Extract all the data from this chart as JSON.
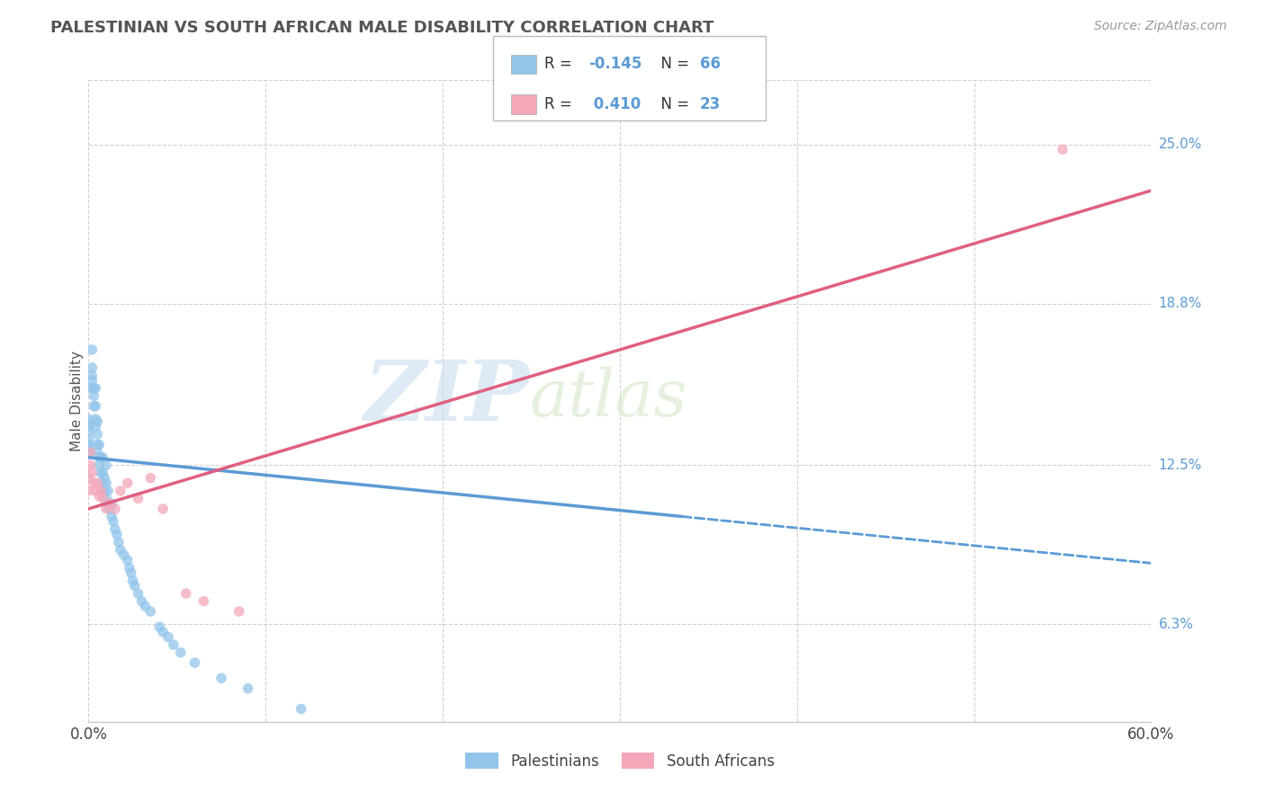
{
  "title": "PALESTINIAN VS SOUTH AFRICAN MALE DISABILITY CORRELATION CHART",
  "source": "Source: ZipAtlas.com",
  "ylabel": "Male Disability",
  "ytick_labels": [
    "25.0%",
    "18.8%",
    "12.5%",
    "6.3%"
  ],
  "ytick_values": [
    0.25,
    0.188,
    0.125,
    0.063
  ],
  "xlim": [
    0.0,
    0.6
  ],
  "ylim": [
    0.025,
    0.275
  ],
  "legend_label1": "Palestinians",
  "legend_label2": "South Africans",
  "r1": -0.145,
  "n1": 66,
  "r2": 0.41,
  "n2": 23,
  "color_blue": "#92C5EA",
  "color_pink": "#F4A7B9",
  "line_blue": "#5B9BD5",
  "line_pink": "#E06080",
  "watermark_zip": "ZIP",
  "watermark_atlas": "atlas",
  "background": "#FFFFFF",
  "grid_color": "#CCCCCC",
  "palestinians_x": [
    0.0,
    0.0,
    0.0,
    0.0,
    0.0,
    0.0,
    0.0,
    0.0,
    0.002,
    0.002,
    0.002,
    0.002,
    0.002,
    0.003,
    0.003,
    0.003,
    0.004,
    0.004,
    0.004,
    0.004,
    0.005,
    0.005,
    0.005,
    0.005,
    0.006,
    0.006,
    0.006,
    0.007,
    0.007,
    0.008,
    0.008,
    0.008,
    0.009,
    0.009,
    0.01,
    0.01,
    0.01,
    0.011,
    0.011,
    0.012,
    0.013,
    0.013,
    0.014,
    0.015,
    0.016,
    0.017,
    0.018,
    0.02,
    0.022,
    0.023,
    0.024,
    0.025,
    0.026,
    0.028,
    0.03,
    0.032,
    0.035,
    0.04,
    0.042,
    0.045,
    0.048,
    0.052,
    0.06,
    0.075,
    0.09,
    0.12
  ],
  "palestinians_y": [
    0.13,
    0.132,
    0.133,
    0.135,
    0.138,
    0.14,
    0.141,
    0.143,
    0.155,
    0.158,
    0.16,
    0.163,
    0.17,
    0.148,
    0.152,
    0.155,
    0.14,
    0.143,
    0.148,
    0.155,
    0.13,
    0.133,
    0.137,
    0.142,
    0.125,
    0.128,
    0.133,
    0.122,
    0.128,
    0.118,
    0.122,
    0.128,
    0.115,
    0.12,
    0.112,
    0.118,
    0.125,
    0.11,
    0.115,
    0.108,
    0.105,
    0.11,
    0.103,
    0.1,
    0.098,
    0.095,
    0.092,
    0.09,
    0.088,
    0.085,
    0.083,
    0.08,
    0.078,
    0.075,
    0.072,
    0.07,
    0.068,
    0.062,
    0.06,
    0.058,
    0.055,
    0.052,
    0.048,
    0.042,
    0.038,
    0.03
  ],
  "southafricans_x": [
    0.0,
    0.0,
    0.001,
    0.001,
    0.002,
    0.003,
    0.004,
    0.005,
    0.006,
    0.007,
    0.008,
    0.01,
    0.012,
    0.015,
    0.018,
    0.022,
    0.028,
    0.035,
    0.042,
    0.055,
    0.065,
    0.085,
    0.55
  ],
  "southafricans_y": [
    0.115,
    0.12,
    0.125,
    0.13,
    0.122,
    0.118,
    0.115,
    0.118,
    0.113,
    0.115,
    0.112,
    0.108,
    0.11,
    0.108,
    0.115,
    0.118,
    0.112,
    0.12,
    0.108,
    0.075,
    0.072,
    0.068,
    0.248
  ],
  "trend_p_x0": 0.0,
  "trend_p_y0": 0.128,
  "trend_p_x1": 0.335,
  "trend_p_y1": 0.105,
  "trend_p_dash_x0": 0.335,
  "trend_p_dash_x1": 0.6,
  "trend_s_x0": 0.0,
  "trend_s_y0": 0.108,
  "trend_s_x1": 0.6,
  "trend_s_y1": 0.232
}
